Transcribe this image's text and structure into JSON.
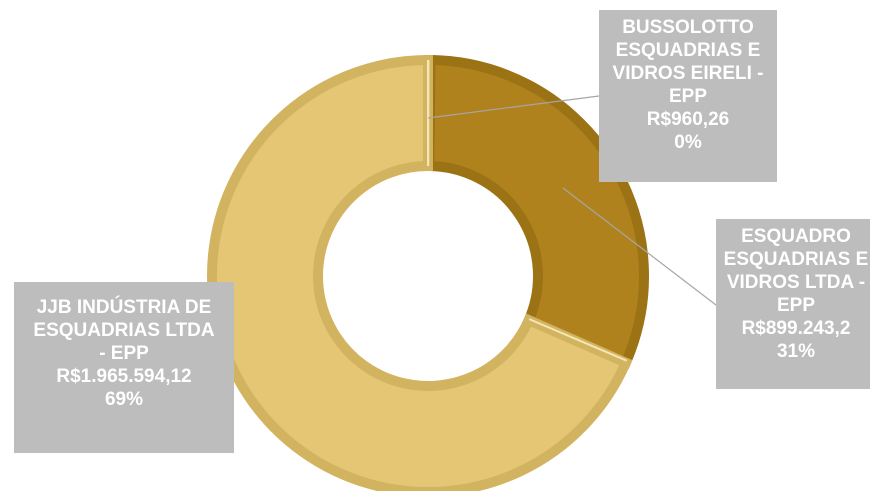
{
  "chart_data": {
    "type": "donut",
    "slices": [
      {
        "name_lines": [
          "BUSSOLOTTO",
          "ESQUADRIAS E",
          "VIDROS EIRELI -",
          "EPP"
        ],
        "value_label": "R$960,26",
        "percent_label": "0%",
        "value": 960.26,
        "color": "#c7a53c",
        "edge": "#d4b451"
      },
      {
        "name_lines": [
          "ESQUADRO",
          "ESQUADRIAS E",
          "VIDROS LTDA -",
          "EPP"
        ],
        "value_label": "R$899.243,2",
        "percent_label": "31%",
        "value": 899243.2,
        "color": "#b0821e",
        "edge": "#9b7214"
      },
      {
        "name_lines": [
          "JJB INDÚSTRIA DE",
          "ESQUADRIAS LTDA",
          "- EPP"
        ],
        "value_label": "R$1.965.594,12",
        "percent_label": "69%",
        "value": 1965594.12,
        "color": "#e4c675",
        "edge": "#d2b35f"
      }
    ],
    "label_style": {
      "box_color": "#bdbdbd",
      "text_color": "#ffffff",
      "leader_color": "#a6a6a6"
    }
  }
}
